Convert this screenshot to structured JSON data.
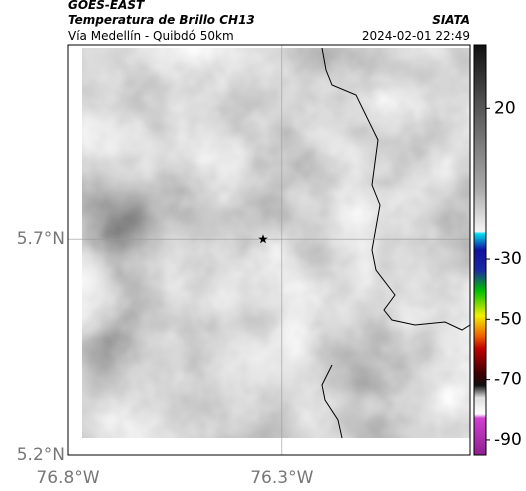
{
  "header": {
    "satellite": "GOES-EAST",
    "product": "Temperatura de Brillo CH13",
    "route": "Vía Medellín - Quibdó 50km",
    "source": "SIATA",
    "datetime": "2024-02-01 22:49"
  },
  "map": {
    "xlim": [
      -76.8,
      -75.86
    ],
    "ylim": [
      5.2,
      6.15
    ],
    "xticks": [
      {
        "value": -76.8,
        "label": "76.8°W"
      },
      {
        "value": -76.3,
        "label": "76.3°W"
      }
    ],
    "yticks": [
      {
        "value": 5.7,
        "label": "5.7°N"
      },
      {
        "value": 5.2,
        "label": "5.2°N"
      }
    ],
    "grid": true,
    "marker": {
      "lon": -76.344,
      "lat": 5.7
    }
  },
  "colorbar": {
    "lim": [
      41,
      -95
    ],
    "ticks": [
      20,
      -30,
      -50,
      -70,
      -90
    ]
  }
}
